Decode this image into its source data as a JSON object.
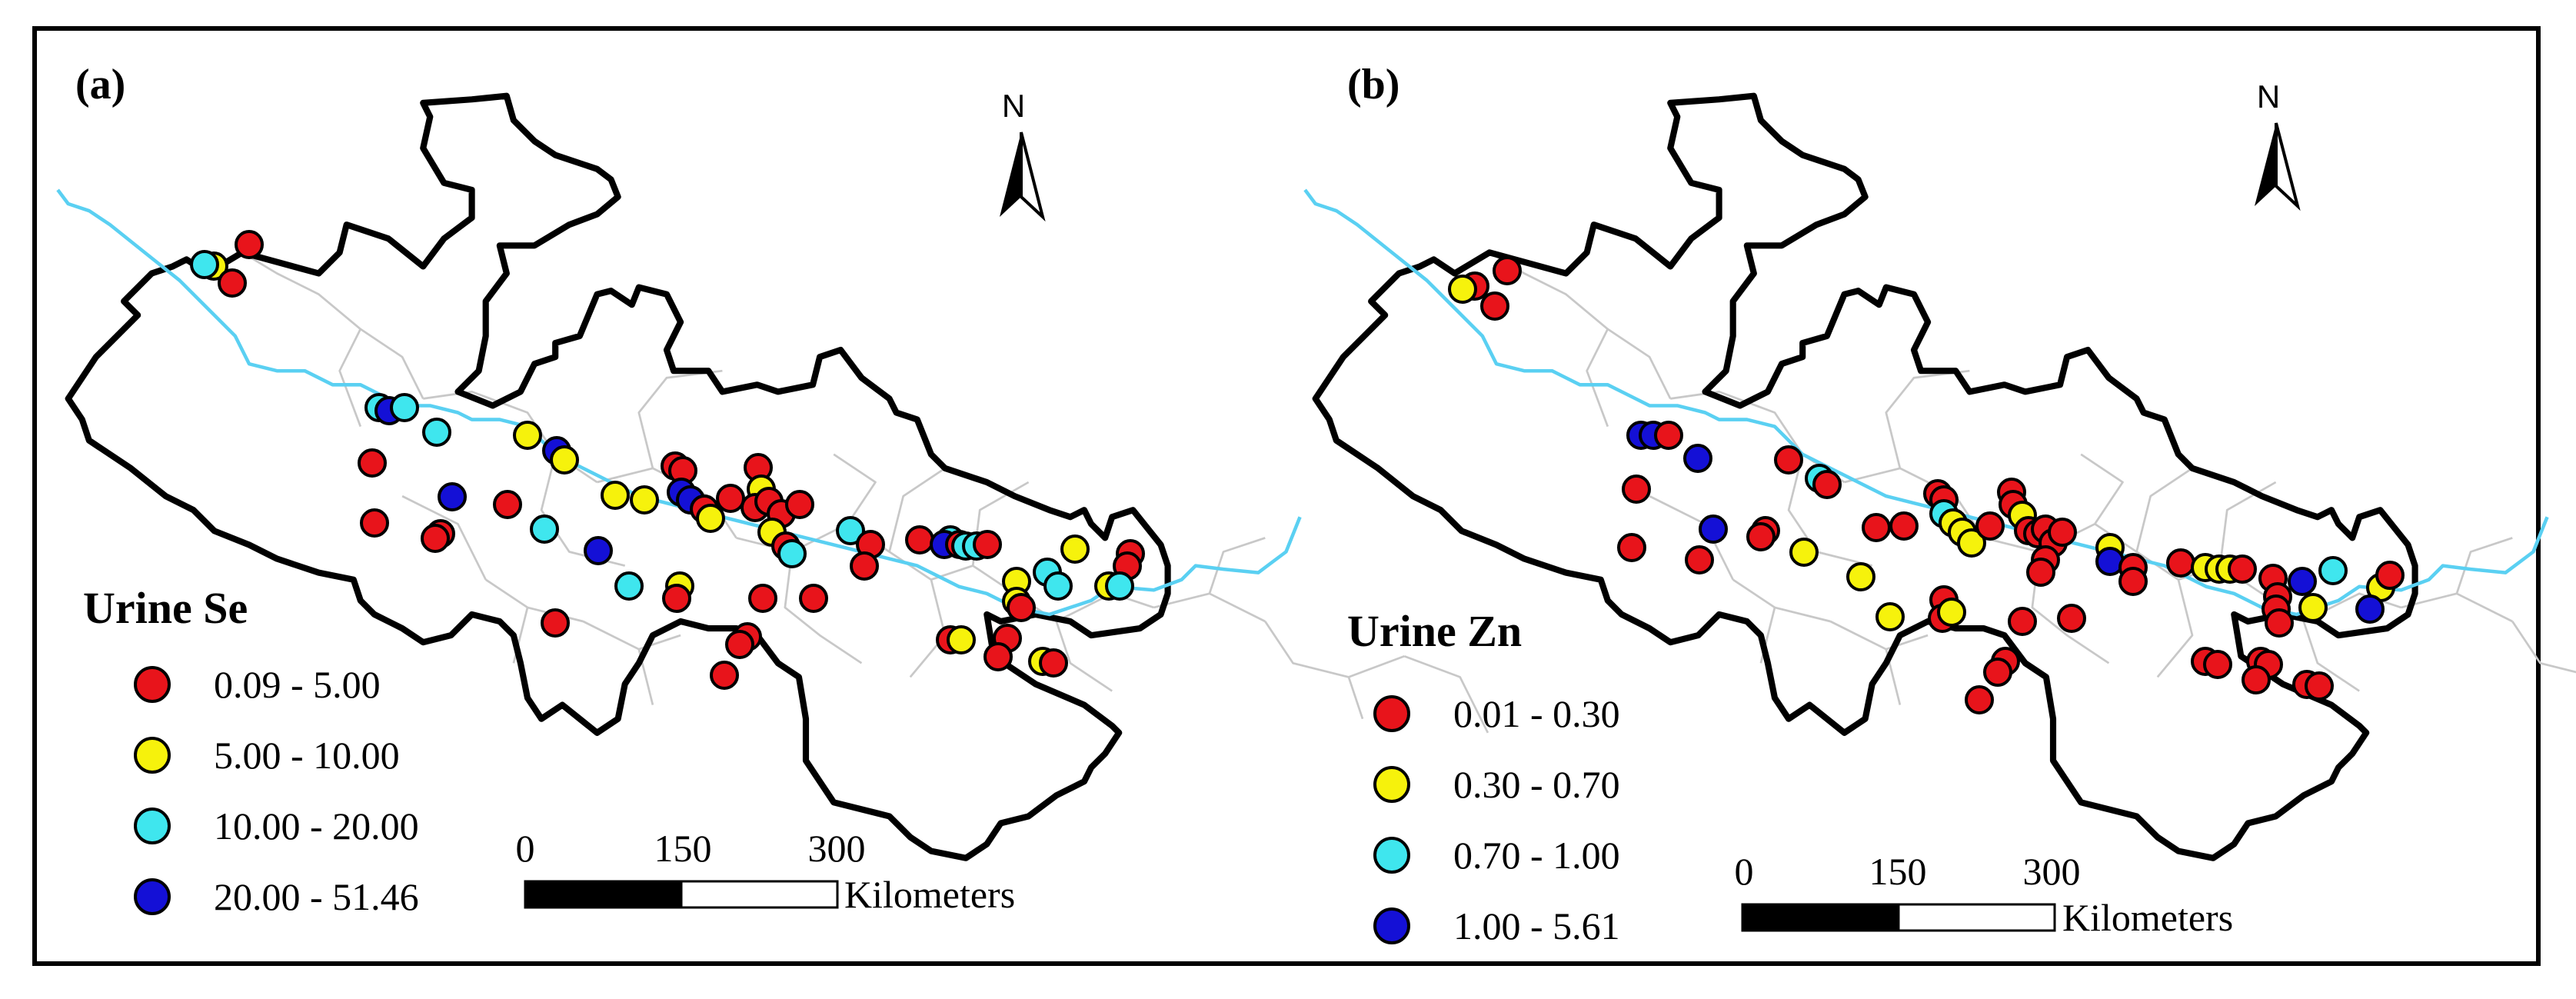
{
  "colors": {
    "red": "#e8141b",
    "yellow": "#f6f20c",
    "cyan": "#3fe6ee",
    "blue": "#1410d6",
    "river": "#5ad0f2"
  },
  "panels": [
    {
      "label": "(a)",
      "north": "N",
      "legend_title": "Urine Se",
      "legend_classes": [
        {
          "range": "0.09 - 5.00",
          "color": "red"
        },
        {
          "range": "5.00 - 10.00",
          "color": "yellow"
        },
        {
          "range": "10.00 - 20.00",
          "color": "cyan"
        },
        {
          "range": "20.00 - 51.46",
          "color": "blue"
        }
      ],
      "scale_ticks": [
        "0",
        "150",
        "300"
      ],
      "scale_unit": "Kilometers"
    },
    {
      "label": "(b)",
      "north": "N",
      "legend_title": "Urine Zn",
      "legend_classes": [
        {
          "range": "0.01 - 0.30",
          "color": "red"
        },
        {
          "range": "0.30 - 0.70",
          "color": "yellow"
        },
        {
          "range": "0.70 - 1.00",
          "color": "cyan"
        },
        {
          "range": "1.00 - 5.61",
          "color": "blue"
        }
      ],
      "scale_ticks": [
        "0",
        "150",
        "300"
      ],
      "scale_unit": "Kilometers"
    }
  ]
}
